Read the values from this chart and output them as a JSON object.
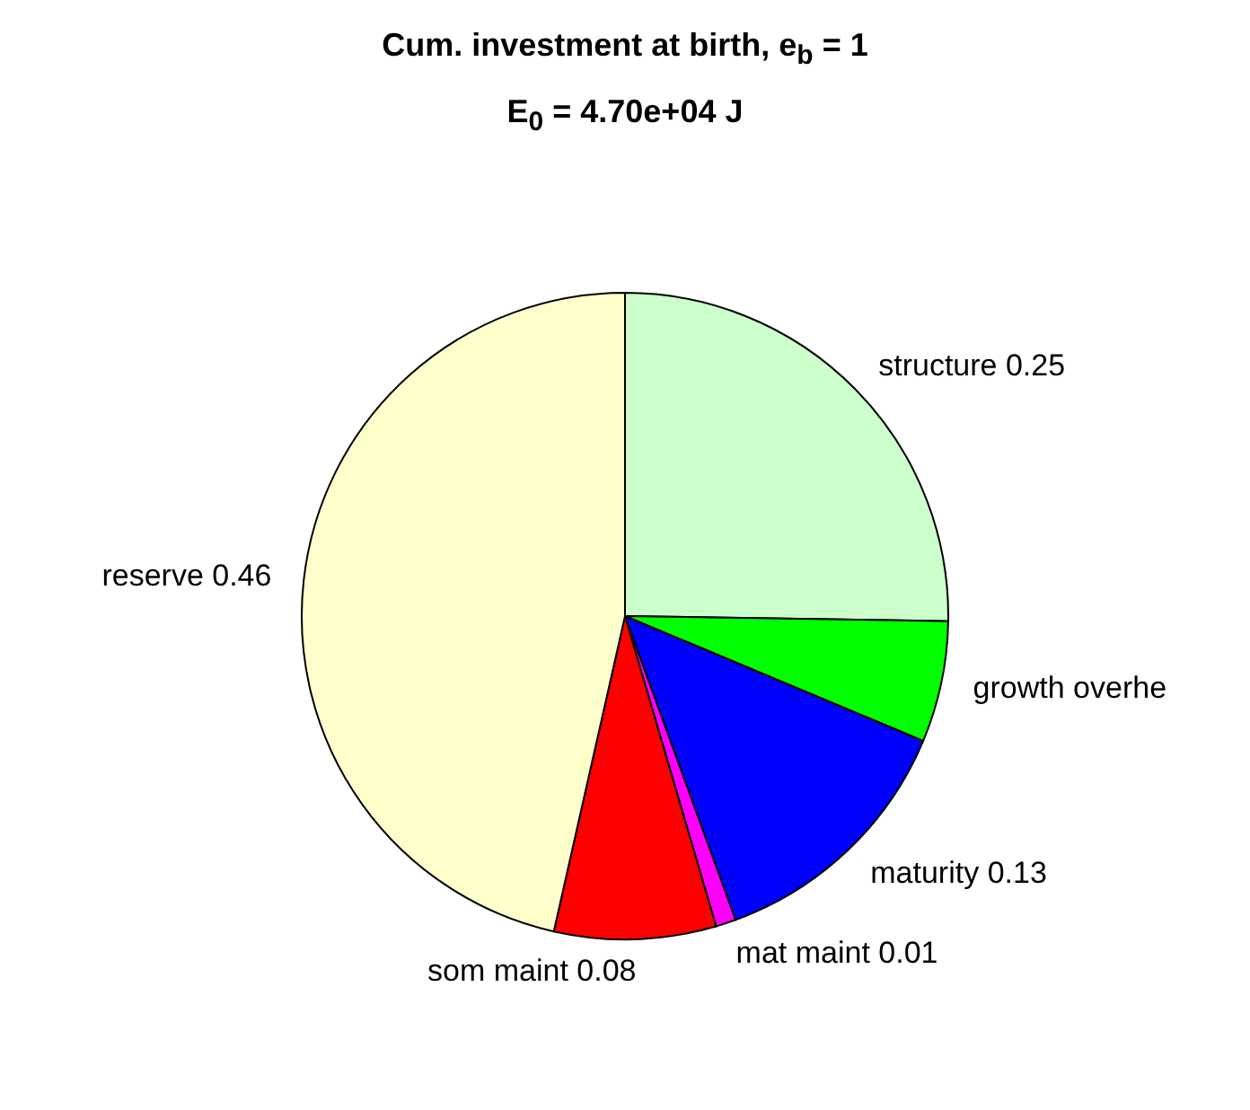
{
  "chart_data": {
    "type": "pie",
    "title": "Cum. investment at birth, e$_{b}$ = 1",
    "subtitle": "E$_{0}$ = 4.70e+04 J",
    "categories": [
      "structure",
      "growth overhe",
      "maturity",
      "mat maint",
      "som maint",
      "reserve"
    ],
    "values": [
      0.25,
      0.06,
      0.13,
      0.01,
      0.08,
      0.46
    ],
    "value_labels": [
      "0.25",
      null,
      "0.13",
      "0.01",
      "0.08",
      "0.46"
    ],
    "colors": [
      "#ccffcc",
      "#00ff00",
      "#0000ff",
      "#ff00ff",
      "#ff0000",
      "#ffffcc"
    ]
  }
}
